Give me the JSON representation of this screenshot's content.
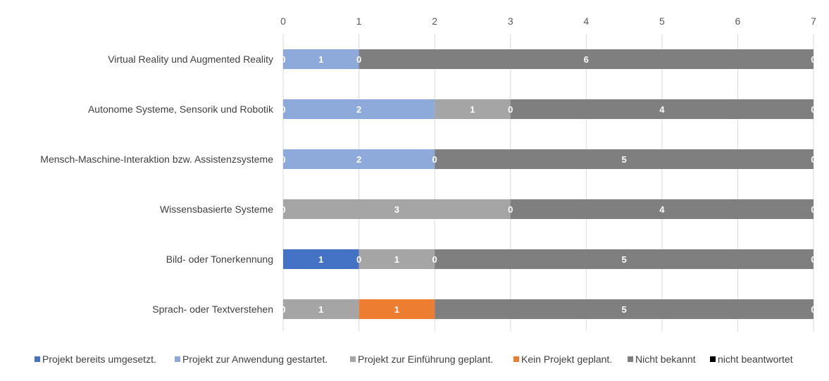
{
  "chart_data": {
    "type": "bar",
    "orientation": "horizontal",
    "stacked": true,
    "xlim": [
      0,
      7
    ],
    "x_ticks": [
      "0",
      "1",
      "2",
      "3",
      "4",
      "5",
      "6",
      "7"
    ],
    "grid": true,
    "legend_position": "bottom",
    "categories": [
      "Virtual Reality und Augmented Reality",
      "Autonome Systeme, Sensorik und Robotik",
      "Mensch-Maschine-Interaktion bzw. Assistenzsysteme",
      "Wissensbasierte Systeme",
      "Bild- oder Tonerkennung",
      "Sprach- oder Textverstehen"
    ],
    "series": [
      {
        "name": "Projekt bereits umgesetzt.",
        "color": "#4472c4",
        "values": [
          0,
          0,
          0,
          0,
          1,
          0
        ],
        "labels": [
          "0",
          "0",
          "0",
          "0",
          "1",
          "0"
        ]
      },
      {
        "name": "Projekt zur Anwendung gestartet.",
        "color": "#8eaadb",
        "values": [
          1,
          2,
          2,
          0,
          0,
          0
        ],
        "labels": [
          "1",
          "2",
          "2",
          "",
          "0",
          ""
        ]
      },
      {
        "name": "Projekt zur Einführung geplant.",
        "color": "#a5a5a5",
        "values": [
          0,
          1,
          0,
          3,
          1,
          1
        ],
        "labels": [
          "0",
          "1",
          "0",
          "3",
          "1",
          "1"
        ]
      },
      {
        "name": "Kein Projekt geplant.",
        "color": "#ed7d31",
        "values": [
          0,
          0,
          0,
          0,
          0,
          1
        ],
        "labels": [
          "",
          "0",
          "",
          "0",
          "0",
          "1"
        ]
      },
      {
        "name": "Nicht bekannt",
        "color": "#7f7f7f",
        "values": [
          6,
          4,
          5,
          4,
          5,
          5
        ],
        "labels": [
          "6",
          "4",
          "5",
          "4",
          "5",
          "5"
        ]
      },
      {
        "name": "nicht beantwortet",
        "color": "#000000",
        "values": [
          0,
          0,
          0,
          0,
          0,
          0
        ],
        "labels": [
          "0",
          "0",
          "0",
          "0",
          "0",
          "0"
        ]
      }
    ]
  }
}
